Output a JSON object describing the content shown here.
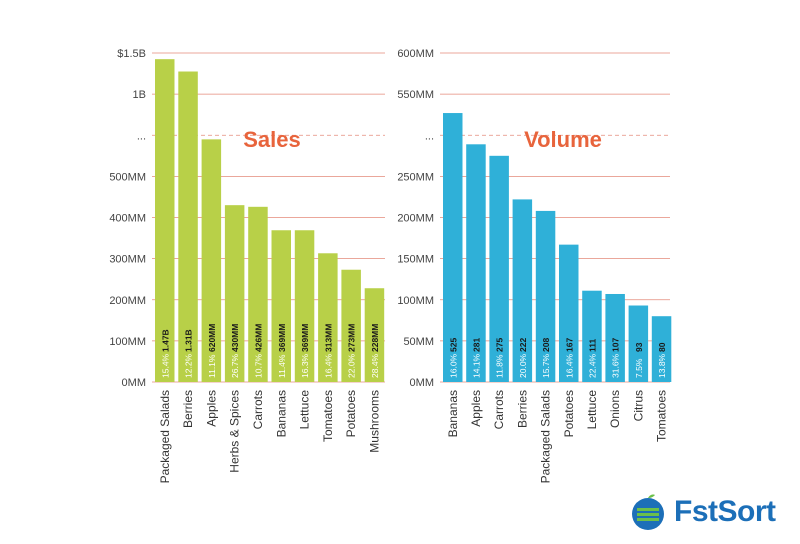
{
  "chart_data": [
    {
      "type": "bar",
      "title": "Sales",
      "color": "#b8d048",
      "title_color": "#e8643c",
      "grid_color": "#e48a7a",
      "y_ticks": [
        "0MM",
        "100MM",
        "200MM",
        "300MM",
        "400MM",
        "500MM",
        "...",
        "1B",
        "$1.5B"
      ],
      "y_tick_values": [
        0,
        100,
        200,
        300,
        400,
        500,
        600,
        700,
        800
      ],
      "ylim": [
        0,
        800
      ],
      "axis_break": true,
      "categories": [
        "Packaged Salads",
        "Berries",
        "Apples",
        "Herbs & Spices",
        "Carrots",
        "Bananas",
        "Lettuce",
        "Tomatoes",
        "Potatoes",
        "Mushrooms"
      ],
      "values": [
        1470,
        1310,
        620,
        430,
        426,
        369,
        369,
        313,
        273,
        228
      ],
      "value_labels": [
        "1.47B",
        "1.31B",
        "620MM",
        "430MM",
        "426MM",
        "369MM",
        "369MM",
        "313MM",
        "273MM",
        "228MM"
      ],
      "pct_labels": [
        "15.4%",
        "12.2%",
        "11.1%",
        "26.7%",
        "10.7%",
        "11.4%",
        "16.3%",
        "16.4%",
        "22.0%",
        "28.4%"
      ],
      "plot_heights": [
        785,
        755,
        590,
        430,
        426,
        369,
        369,
        313,
        273,
        228
      ]
    },
    {
      "type": "bar",
      "title": "Volume",
      "color": "#2fb0d8",
      "title_color": "#e8643c",
      "grid_color": "#e48a7a",
      "y_ticks": [
        "0MM",
        "50MM",
        "100MM",
        "150MM",
        "200MM",
        "250MM",
        "...",
        "550MM",
        "600MM"
      ],
      "y_tick_values": [
        0,
        50,
        100,
        150,
        200,
        250,
        300,
        350,
        400
      ],
      "ylim": [
        0,
        400
      ],
      "axis_break": true,
      "categories": [
        "Bananas",
        "Apples",
        "Carrots",
        "Berries",
        "Packaged Salads",
        "Potatoes",
        "Lettuce",
        "Onions",
        "Citrus",
        "Tomatoes"
      ],
      "values": [
        525,
        281,
        275,
        222,
        208,
        167,
        111,
        107,
        93,
        80
      ],
      "value_labels": [
        "525",
        "281",
        "275",
        "222",
        "208",
        "167",
        "111",
        "107",
        "93",
        "80"
      ],
      "pct_labels": [
        "16.0%",
        "14.1%",
        "11.8%",
        "20.0%",
        "15.7%",
        "16.4%",
        "22.4%",
        "31.6%",
        "7.5%",
        "13.8%"
      ],
      "plot_heights": [
        327,
        289,
        275,
        222,
        208,
        167,
        111,
        107,
        93,
        80
      ]
    }
  ],
  "brand": {
    "name": "FstSort",
    "color": "#1c6fb8",
    "accent": "#6cc04a"
  }
}
